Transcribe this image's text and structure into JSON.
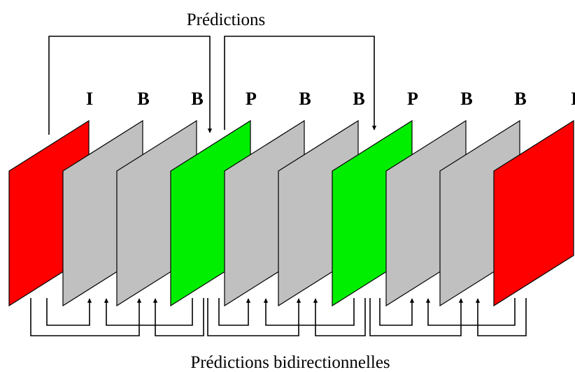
{
  "diagram": {
    "top_label": "Prédictions",
    "bottom_label": "Prédictions bidirectionnelles",
    "colors": {
      "I": "#ff0000",
      "B": "#c0c0c0",
      "P": "#00ee00"
    },
    "frames": [
      {
        "type": "I"
      },
      {
        "type": "B"
      },
      {
        "type": "B"
      },
      {
        "type": "P"
      },
      {
        "type": "B"
      },
      {
        "type": "B"
      },
      {
        "type": "P"
      },
      {
        "type": "B"
      },
      {
        "type": "B"
      },
      {
        "type": "I"
      }
    ]
  }
}
